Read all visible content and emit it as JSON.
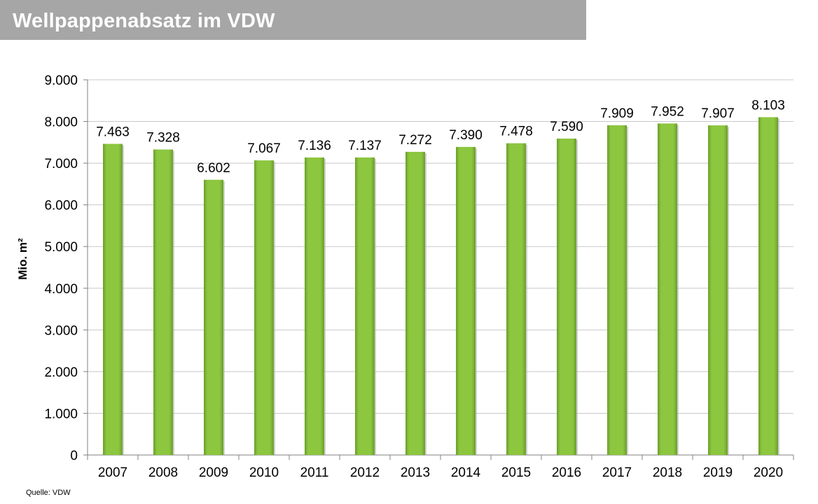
{
  "title": "Wellpappenabsatz im VDW",
  "source": "Quelle: VDW",
  "colors": {
    "title_bg": "#a6a6a6",
    "bar": "#8dc63f",
    "bar_dark": "#6a9e2b",
    "gridline": "#c8c8c8"
  },
  "chart_data": {
    "type": "bar",
    "title": "Wellpappenabsatz im VDW",
    "xlabel": "",
    "ylabel": "Mio. m²",
    "ylim": [
      0,
      9000
    ],
    "yticks": [
      0,
      1000,
      2000,
      3000,
      4000,
      5000,
      6000,
      7000,
      8000,
      9000
    ],
    "ytick_labels": [
      "0",
      "1.000",
      "2.000",
      "3.000",
      "4.000",
      "5.000",
      "6.000",
      "7.000",
      "8.000",
      "9.000"
    ],
    "grid": true,
    "categories": [
      "2007",
      "2008",
      "2009",
      "2010",
      "2011",
      "2012",
      "2013",
      "2014",
      "2015",
      "2016",
      "2017",
      "2018",
      "2019",
      "2020"
    ],
    "values": [
      7463,
      7328,
      6602,
      7067,
      7136,
      7137,
      7272,
      7390,
      7478,
      7590,
      7909,
      7952,
      7907,
      8103
    ],
    "value_labels": [
      "7.463",
      "7.328",
      "6.602",
      "7.067",
      "7.136",
      "7.137",
      "7.272",
      "7.390",
      "7.478",
      "7.590",
      "7.909",
      "7.952",
      "7.907",
      "8.103"
    ]
  }
}
